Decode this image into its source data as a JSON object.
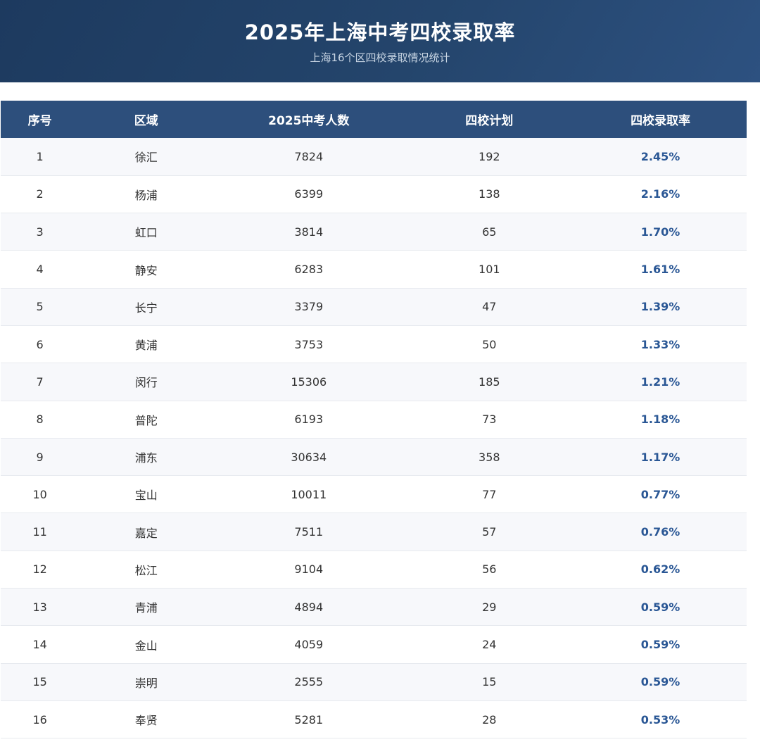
{
  "banner": {
    "title": "2025年上海中考四校录取率",
    "subtitle": "上海16个区四校录取情况统计"
  },
  "table": {
    "columns": [
      "序号",
      "区域",
      "2025中考人数",
      "四校计划",
      "四校录取率"
    ],
    "rows": [
      {
        "index": "1",
        "district": "徐汇",
        "candidates": "7824",
        "plan": "192",
        "rate": "2.45%"
      },
      {
        "index": "2",
        "district": "杨浦",
        "candidates": "6399",
        "plan": "138",
        "rate": "2.16%"
      },
      {
        "index": "3",
        "district": "虹口",
        "candidates": "3814",
        "plan": "65",
        "rate": "1.70%"
      },
      {
        "index": "4",
        "district": "静安",
        "candidates": "6283",
        "plan": "101",
        "rate": "1.61%"
      },
      {
        "index": "5",
        "district": "长宁",
        "candidates": "3379",
        "plan": "47",
        "rate": "1.39%"
      },
      {
        "index": "6",
        "district": "黄浦",
        "candidates": "3753",
        "plan": "50",
        "rate": "1.33%"
      },
      {
        "index": "7",
        "district": "闵行",
        "candidates": "15306",
        "plan": "185",
        "rate": "1.21%"
      },
      {
        "index": "8",
        "district": "普陀",
        "candidates": "6193",
        "plan": "73",
        "rate": "1.18%"
      },
      {
        "index": "9",
        "district": "浦东",
        "candidates": "30634",
        "plan": "358",
        "rate": "1.17%"
      },
      {
        "index": "10",
        "district": "宝山",
        "candidates": "10011",
        "plan": "77",
        "rate": "0.77%"
      },
      {
        "index": "11",
        "district": "嘉定",
        "candidates": "7511",
        "plan": "57",
        "rate": "0.76%"
      },
      {
        "index": "12",
        "district": "松江",
        "candidates": "9104",
        "plan": "56",
        "rate": "0.62%"
      },
      {
        "index": "13",
        "district": "青浦",
        "candidates": "4894",
        "plan": "29",
        "rate": "0.59%"
      },
      {
        "index": "14",
        "district": "金山",
        "candidates": "4059",
        "plan": "24",
        "rate": "0.59%"
      },
      {
        "index": "15",
        "district": "崇明",
        "candidates": "2555",
        "plan": "15",
        "rate": "0.59%"
      },
      {
        "index": "16",
        "district": "奉贤",
        "candidates": "5281",
        "plan": "28",
        "rate": "0.53%"
      }
    ]
  },
  "colors": {
    "banner_gradient_start": "#1d3a5f",
    "banner_gradient_end": "#2d5180",
    "table_header_bg": "#2d4f7c",
    "rate_text": "#2a5795",
    "zebra_row_bg": "#f7f8fb",
    "row_border": "#e7eaef"
  },
  "chart_data": {
    "type": "table",
    "title": "2025年上海中考四校录取率",
    "subtitle": "上海16个区四校录取情况统计",
    "columns": [
      "序号",
      "区域",
      "2025中考人数",
      "四校计划",
      "四校录取率"
    ],
    "rows": [
      [
        1,
        "徐汇",
        7824,
        192,
        "2.45%"
      ],
      [
        2,
        "杨浦",
        6399,
        138,
        "2.16%"
      ],
      [
        3,
        "虹口",
        3814,
        65,
        "1.70%"
      ],
      [
        4,
        "静安",
        6283,
        101,
        "1.61%"
      ],
      [
        5,
        "长宁",
        3379,
        47,
        "1.39%"
      ],
      [
        6,
        "黄浦",
        3753,
        50,
        "1.33%"
      ],
      [
        7,
        "闵行",
        15306,
        185,
        "1.21%"
      ],
      [
        8,
        "普陀",
        6193,
        73,
        "1.18%"
      ],
      [
        9,
        "浦东",
        30634,
        358,
        "1.17%"
      ],
      [
        10,
        "宝山",
        10011,
        77,
        "0.77%"
      ],
      [
        11,
        "嘉定",
        7511,
        57,
        "0.76%"
      ],
      [
        12,
        "松江",
        9104,
        56,
        "0.62%"
      ],
      [
        13,
        "青浦",
        4894,
        29,
        "0.59%"
      ],
      [
        14,
        "金山",
        4059,
        24,
        "0.59%"
      ],
      [
        15,
        "崇明",
        2555,
        15,
        "0.59%"
      ],
      [
        16,
        "奉贤",
        5281,
        28,
        "0.53%"
      ]
    ],
    "sort": "四校录取率 descending"
  }
}
